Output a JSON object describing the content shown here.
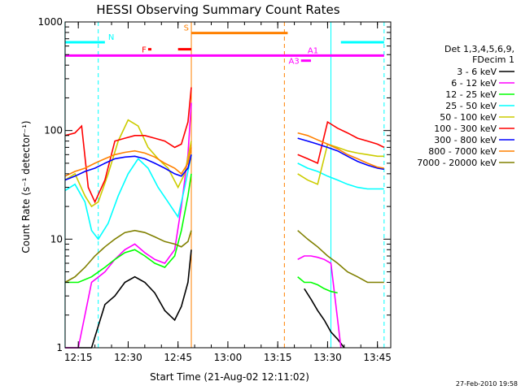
{
  "chart_data": {
    "type": "line",
    "title": "HESSI Observing Summary Count Rates",
    "xlabel": "Start Time (21-Aug-02 12:11:02)",
    "ylabel": "Count Rate (s⁻¹ detector⁻¹)",
    "y_scale": "log",
    "ylim": [
      1,
      1000
    ],
    "xlim": [
      "12:11:02",
      "13:49:00"
    ],
    "x_ticks": [
      "12:15",
      "12:30",
      "12:45",
      "13:00",
      "13:15",
      "13:30",
      "13:45"
    ],
    "y_ticks": [
      "1",
      "10",
      "100",
      "1000"
    ],
    "legend": {
      "position": "right",
      "header": [
        "Det 1,3,4,5,6,9,",
        "FDecim 1"
      ]
    },
    "series": [
      {
        "name": "3 - 6 keV",
        "color": "#000000",
        "segments": [
          {
            "x": [
              "12:11",
              "12:15",
              "12:19",
              "12:23",
              "12:26",
              "12:29",
              "12:32",
              "12:35",
              "12:38",
              "12:41",
              "12:44",
              "12:46",
              "12:48",
              "12:49"
            ],
            "y": [
              0,
              0,
              0,
              2.5,
              3.0,
              4.0,
              4.5,
              4.0,
              3.2,
              2.2,
              1.8,
              2.4,
              4.0,
              8.0
            ]
          },
          {
            "x": [
              "13:23",
              "13:25",
              "13:27",
              "13:29",
              "13:31",
              "13:33",
              "13:35"
            ],
            "y": [
              3.5,
              2.8,
              2.2,
              1.8,
              1.4,
              1.2,
              0
            ]
          }
        ]
      },
      {
        "name": "6 - 12 keV",
        "color": "#ff00ff",
        "segments": [
          {
            "x": [
              "12:11",
              "12:15",
              "12:19",
              "12:23",
              "12:26",
              "12:29",
              "12:32",
              "12:35",
              "12:38",
              "12:41",
              "12:44",
              "12:46",
              "12:48",
              "12:49"
            ],
            "y": [
              0,
              0,
              4.0,
              5.0,
              6.5,
              8.0,
              9.0,
              7.5,
              6.5,
              6.0,
              8.0,
              20,
              60,
              180
            ]
          },
          {
            "x": [
              "13:21",
              "13:23",
              "13:25",
              "13:27",
              "13:29",
              "13:31",
              "13:34"
            ],
            "y": [
              6.5,
              7.0,
              7.0,
              6.8,
              6.5,
              6.0,
              0
            ]
          }
        ]
      },
      {
        "name": "12 - 25 keV",
        "color": "#00ff00",
        "segments": [
          {
            "x": [
              "12:11",
              "12:15",
              "12:19",
              "12:23",
              "12:26",
              "12:29",
              "12:32",
              "12:35",
              "12:38",
              "12:41",
              "12:44",
              "12:46",
              "12:48",
              "12:49"
            ],
            "y": [
              4.0,
              4.0,
              4.5,
              5.5,
              6.5,
              7.5,
              8.0,
              7.0,
              6.0,
              5.5,
              7.0,
              12,
              25,
              40
            ]
          },
          {
            "x": [
              "13:21",
              "13:23",
              "13:25",
              "13:27",
              "13:29",
              "13:31",
              "13:33"
            ],
            "y": [
              4.5,
              4.0,
              4.0,
              3.8,
              3.5,
              3.3,
              3.2
            ]
          }
        ]
      },
      {
        "name": "25 - 50 keV",
        "color": "#00ffff",
        "segments": [
          {
            "x": [
              "12:11",
              "12:14",
              "12:17",
              "12:19",
              "12:21",
              "12:24",
              "12:27",
              "12:30",
              "12:33",
              "12:36",
              "12:39",
              "12:42",
              "12:45",
              "12:47",
              "12:49"
            ],
            "y": [
              28,
              32,
              22,
              12,
              10,
              14,
              25,
              40,
              55,
              45,
              30,
              22,
              16,
              30,
              60
            ]
          },
          {
            "x": [
              "13:21",
              "13:24",
              "13:27",
              "13:30",
              "13:33",
              "13:36",
              "13:39",
              "13:42",
              "13:45",
              "13:47"
            ],
            "y": [
              50,
              45,
              42,
              38,
              35,
              32,
              30,
              29,
              29,
              29
            ]
          }
        ]
      },
      {
        "name": "50 - 100 keV",
        "color": "#cccc00",
        "segments": [
          {
            "x": [
              "12:11",
              "12:14",
              "12:17",
              "12:19",
              "12:21",
              "12:24",
              "12:27",
              "12:30",
              "12:33",
              "12:36",
              "12:39",
              "12:42",
              "12:45",
              "12:47",
              "12:49"
            ],
            "y": [
              35,
              40,
              25,
              20,
              22,
              40,
              80,
              125,
              110,
              70,
              55,
              45,
              30,
              40,
              80
            ]
          },
          {
            "x": [
              "13:21",
              "13:24",
              "13:27",
              "13:30",
              "13:33",
              "13:36",
              "13:39",
              "13:42",
              "13:45",
              "13:47"
            ],
            "y": [
              40,
              35,
              32,
              75,
              70,
              65,
              62,
              60,
              58,
              58
            ]
          }
        ]
      },
      {
        "name": "100 - 300 keV",
        "color": "#ff0000",
        "segments": [
          {
            "x": [
              "12:11",
              "12:14",
              "12:16",
              "12:18",
              "12:20",
              "12:23",
              "12:26",
              "12:29",
              "12:32",
              "12:35",
              "12:38",
              "12:41",
              "12:44",
              "12:46",
              "12:48",
              "12:49"
            ],
            "y": [
              90,
              95,
              110,
              30,
              22,
              35,
              80,
              85,
              90,
              90,
              85,
              80,
              70,
              75,
              120,
              250
            ]
          },
          {
            "x": [
              "13:21",
              "13:24",
              "13:27",
              "13:30",
              "13:33",
              "13:36",
              "13:39",
              "13:42",
              "13:45",
              "13:47"
            ],
            "y": [
              60,
              55,
              50,
              120,
              105,
              95,
              85,
              80,
              75,
              70
            ]
          }
        ]
      },
      {
        "name": "300 - 800 keV",
        "color": "#0000ff",
        "segments": [
          {
            "x": [
              "12:11",
              "12:14",
              "12:17",
              "12:20",
              "12:23",
              "12:26",
              "12:29",
              "12:32",
              "12:35",
              "12:38",
              "12:41",
              "12:44",
              "12:46",
              "12:48",
              "12:49"
            ],
            "y": [
              35,
              38,
              42,
              45,
              50,
              55,
              57,
              58,
              55,
              50,
              45,
              40,
              38,
              45,
              60
            ]
          },
          {
            "x": [
              "13:21",
              "13:24",
              "13:27",
              "13:30",
              "13:33",
              "13:36",
              "13:39",
              "13:42",
              "13:45",
              "13:47"
            ],
            "y": [
              85,
              80,
              75,
              70,
              65,
              58,
              52,
              48,
              45,
              44
            ]
          }
        ]
      },
      {
        "name": "800 - 7000 keV",
        "color": "#ff8000",
        "segments": [
          {
            "x": [
              "12:11",
              "12:14",
              "12:17",
              "12:20",
              "12:23",
              "12:26",
              "12:29",
              "12:32",
              "12:35",
              "12:38",
              "12:41",
              "12:44",
              "12:46",
              "12:48",
              "12:49"
            ],
            "y": [
              38,
              42,
              45,
              50,
              55,
              60,
              63,
              65,
              62,
              57,
              50,
              45,
              40,
              50,
              70
            ]
          },
          {
            "x": [
              "13:21",
              "13:24",
              "13:27",
              "13:30",
              "13:33",
              "13:36",
              "13:39",
              "13:42",
              "13:45",
              "13:47"
            ],
            "y": [
              95,
              90,
              82,
              75,
              68,
              60,
              55,
              50,
              46,
              45
            ]
          }
        ]
      },
      {
        "name": "7000 - 20000 keV",
        "color": "#808000",
        "segments": [
          {
            "x": [
              "12:11",
              "12:14",
              "12:17",
              "12:20",
              "12:23",
              "12:26",
              "12:29",
              "12:32",
              "12:35",
              "12:38",
              "12:41",
              "12:44",
              "12:46",
              "12:48",
              "12:49"
            ],
            "y": [
              4.0,
              4.5,
              5.5,
              7.0,
              8.5,
              10,
              11.5,
              12,
              11.5,
              10.5,
              9.5,
              9.0,
              8.5,
              9.5,
              12
            ]
          },
          {
            "x": [
              "13:21",
              "13:24",
              "13:27",
              "13:30",
              "13:33",
              "13:36",
              "13:39",
              "13:42",
              "13:45",
              "13:47"
            ],
            "y": [
              12,
              10,
              8.5,
              7.0,
              6.0,
              5.0,
              4.5,
              4.0,
              4.0,
              4.0
            ]
          }
        ]
      }
    ],
    "annotations": [
      {
        "label": "N",
        "color": "#00ffff",
        "bars": [
          [
            "12:11",
            "12:23"
          ],
          [
            "13:34",
            "13:47"
          ]
        ],
        "y": 650
      },
      {
        "label": "F",
        "color": "#ff0000",
        "bars": [
          [
            "12:36",
            "12:37"
          ],
          [
            "12:45",
            "12:49"
          ]
        ],
        "y": 560
      },
      {
        "label": "S",
        "color": "#ff8000",
        "bars": [
          [
            "12:49",
            "13:18"
          ]
        ],
        "y": 790
      },
      {
        "label": "A1",
        "color": "#ff00ff",
        "bars": [
          [
            "12:11",
            "13:47"
          ]
        ],
        "y": 490
      },
      {
        "label": "A3",
        "color": "#ff00ff",
        "bars": [
          [
            "13:22",
            "13:25"
          ]
        ],
        "y": 440
      }
    ],
    "vertical_lines": [
      {
        "x": "12:11",
        "color": "#00ffff",
        "style": "solid"
      },
      {
        "x": "12:21",
        "color": "#00ffff",
        "style": "dashed"
      },
      {
        "x": "12:49",
        "color": "#ff8000",
        "style": "solid"
      },
      {
        "x": "13:17",
        "color": "#ff8000",
        "style": "dashed"
      },
      {
        "x": "13:31",
        "color": "#00ffff",
        "style": "solid"
      },
      {
        "x": "13:47",
        "color": "#00ffff",
        "style": "dashed"
      }
    ],
    "timestamp": "27-Feb-2010 19:58"
  }
}
